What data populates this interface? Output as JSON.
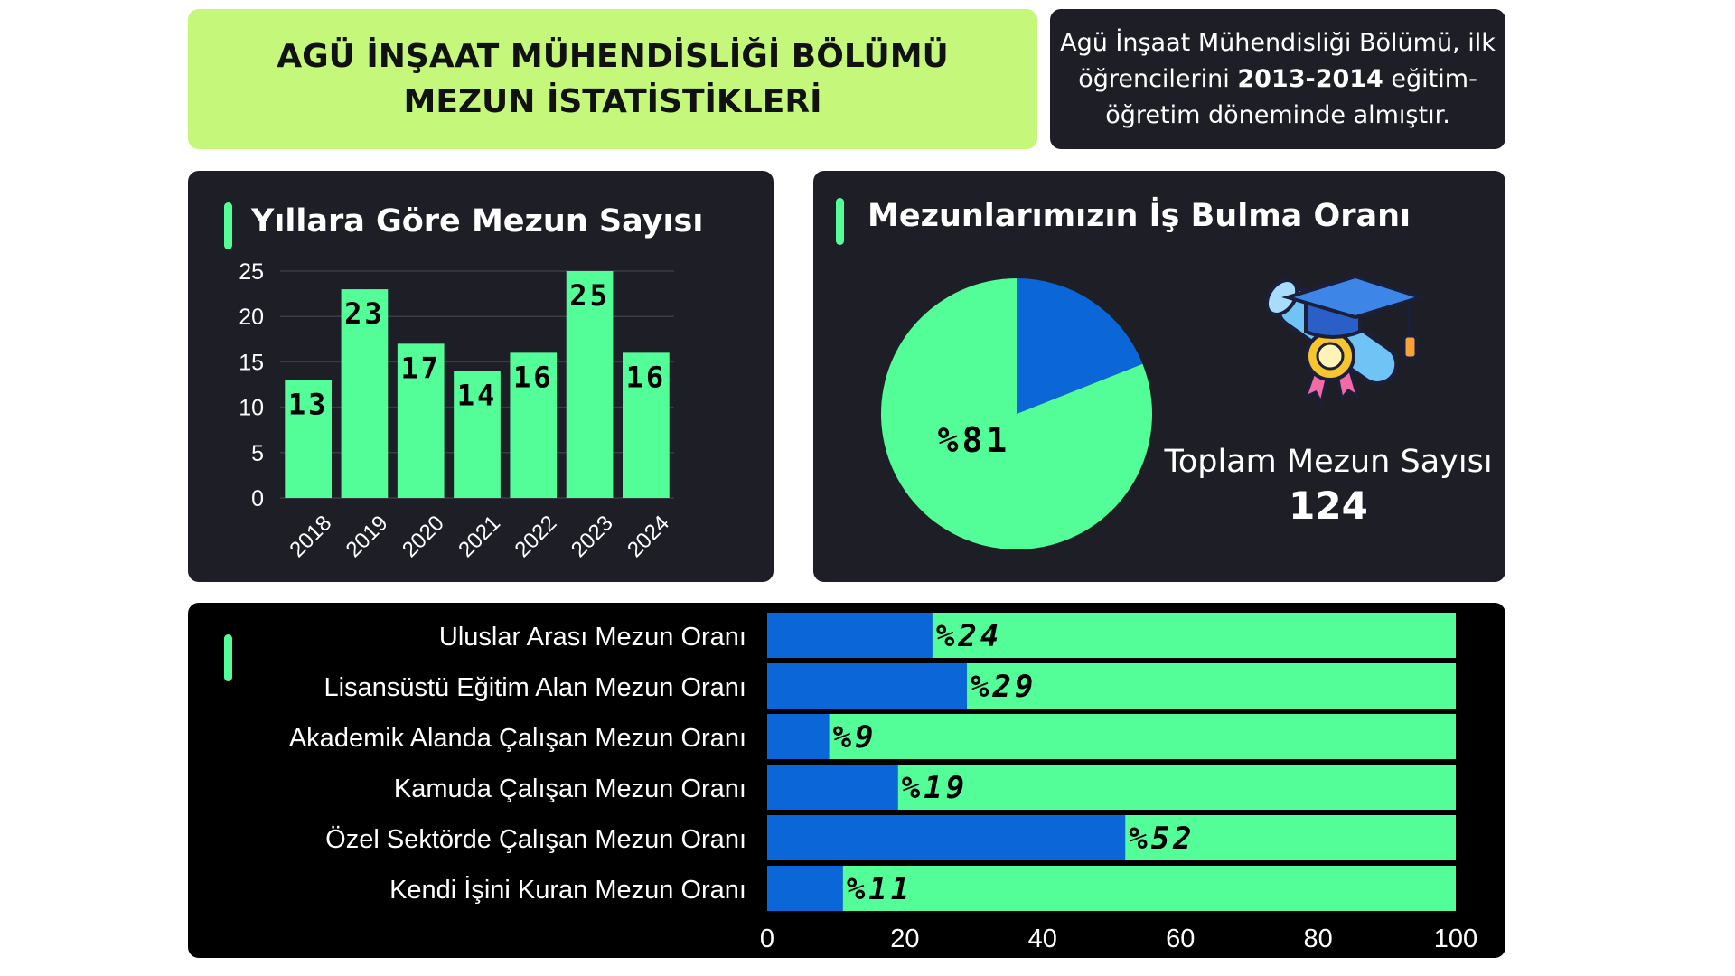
{
  "header": {
    "title": "AGÜ İNŞAAT MÜHENDİSLİĞİ BÖLÜMÜ\nMEZUN İSTATİSTİKLERİ",
    "info_part1": "Agü İnşaat Mühendisliği Bölümü, ilk öğrencilerini ",
    "info_bold": "2013-2014",
    "info_part2": " eğitim-öğretim döneminde almıştır."
  },
  "colors": {
    "green": "#53fd98",
    "blue": "#0b66d8",
    "card": "#1e1f26",
    "lime": "#c5f77a"
  },
  "totals": {
    "label": "Toplam Mezun Sayısı",
    "value": "124"
  },
  "icon": "graduation-cap-diploma-icon",
  "chart_data": [
    {
      "type": "bar",
      "title": "Yıllara Göre Mezun Sayısı",
      "categories": [
        "2018",
        "2019",
        "2020",
        "2021",
        "2022",
        "2023",
        "2024"
      ],
      "values": [
        13,
        23,
        17,
        14,
        16,
        25,
        16
      ],
      "data_labels": [
        "13",
        "23",
        "17",
        "14",
        "16",
        "25",
        "16"
      ],
      "ylim": [
        0,
        25
      ],
      "yticks": [
        "0",
        "5",
        "10",
        "15",
        "20",
        "25"
      ],
      "grid": true
    },
    {
      "type": "pie",
      "title": "Mezunlarımızın İş Bulma Oranı",
      "values": [
        81,
        19
      ],
      "label": "%81",
      "colors": [
        "#53fd98",
        "#0b66d8"
      ]
    },
    {
      "type": "bar",
      "orientation": "horizontal",
      "categories": [
        "Uluslar Arası Mezun Oranı",
        "Lisansüstü Eğitim Alan Mezun Oranı",
        "Akademik Alanda Çalışan Mezun Oranı",
        "Kamuda Çalışan Mezun Oranı",
        "Özel Sektörde Çalışan Mezun Oranı",
        "Kendi İşini Kuran Mezun Oranı"
      ],
      "values": [
        24,
        29,
        9,
        19,
        52,
        11
      ],
      "data_labels": [
        "%24",
        "%29",
        "%9",
        "%19",
        "%52",
        "%11"
      ],
      "xlim": [
        0,
        100
      ],
      "xticks": [
        "0",
        "20",
        "40",
        "60",
        "80",
        "100"
      ]
    }
  ]
}
